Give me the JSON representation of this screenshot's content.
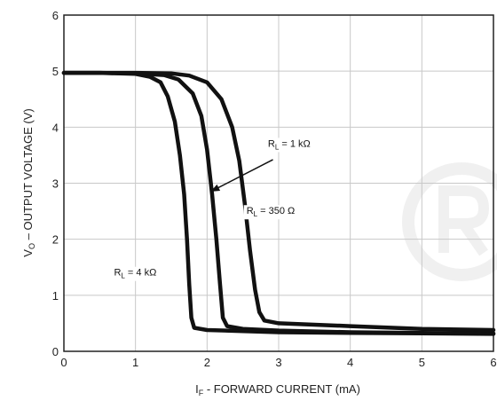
{
  "chart_data": {
    "type": "line",
    "xlabel": {
      "main": "I",
      "sub": "F",
      "rest": " - FORWARD CURRENT (mA)"
    },
    "ylabel": {
      "main": "V",
      "sub": "O",
      "rest": " – OUTPUT VOLTAGE (V)"
    },
    "xlim": [
      0,
      6
    ],
    "ylim": [
      0,
      6
    ],
    "xticks": [
      0,
      1,
      2,
      3,
      4,
      5,
      6
    ],
    "yticks": [
      0,
      1,
      2,
      3,
      4,
      5,
      6
    ],
    "grid": true,
    "series": [
      {
        "name": "RL = 4 kΩ",
        "points": [
          [
            0,
            4.97
          ],
          [
            0.5,
            4.97
          ],
          [
            1.0,
            4.95
          ],
          [
            1.2,
            4.9
          ],
          [
            1.35,
            4.8
          ],
          [
            1.45,
            4.55
          ],
          [
            1.55,
            4.1
          ],
          [
            1.62,
            3.5
          ],
          [
            1.68,
            2.8
          ],
          [
            1.72,
            2.0
          ],
          [
            1.75,
            1.2
          ],
          [
            1.78,
            0.6
          ],
          [
            1.82,
            0.42
          ],
          [
            2.0,
            0.38
          ],
          [
            3.0,
            0.34
          ],
          [
            4.0,
            0.33
          ],
          [
            5.0,
            0.32
          ],
          [
            6.0,
            0.31
          ]
        ]
      },
      {
        "name": "RL = 350 Ω",
        "points": [
          [
            0,
            4.97
          ],
          [
            0.5,
            4.97
          ],
          [
            1.0,
            4.96
          ],
          [
            1.4,
            4.93
          ],
          [
            1.6,
            4.85
          ],
          [
            1.8,
            4.6
          ],
          [
            1.92,
            4.2
          ],
          [
            2.0,
            3.6
          ],
          [
            2.07,
            2.8
          ],
          [
            2.13,
            2.0
          ],
          [
            2.18,
            1.2
          ],
          [
            2.22,
            0.6
          ],
          [
            2.28,
            0.45
          ],
          [
            2.5,
            0.4
          ],
          [
            3.0,
            0.37
          ],
          [
            4.0,
            0.34
          ],
          [
            5.0,
            0.33
          ],
          [
            6.0,
            0.32
          ]
        ]
      },
      {
        "name": "RL = 1 kΩ",
        "points": [
          [
            0,
            4.97
          ],
          [
            0.5,
            4.97
          ],
          [
            1.0,
            4.97
          ],
          [
            1.5,
            4.96
          ],
          [
            1.75,
            4.92
          ],
          [
            2.0,
            4.8
          ],
          [
            2.2,
            4.5
          ],
          [
            2.35,
            4.0
          ],
          [
            2.45,
            3.4
          ],
          [
            2.53,
            2.6
          ],
          [
            2.6,
            1.8
          ],
          [
            2.67,
            1.1
          ],
          [
            2.73,
            0.7
          ],
          [
            2.8,
            0.55
          ],
          [
            3.0,
            0.5
          ],
          [
            4.0,
            0.45
          ],
          [
            5.0,
            0.4
          ],
          [
            6.0,
            0.38
          ]
        ]
      }
    ],
    "annotations": [
      {
        "id": "ann-1k",
        "main": "R",
        "sub": "L",
        "rest": " = 1 kΩ",
        "x": 2.85,
        "y": 3.65
      },
      {
        "id": "ann-350",
        "main": "R",
        "sub": "L",
        "rest": " = 350 Ω",
        "x": 2.55,
        "y": 2.45
      },
      {
        "id": "ann-4k",
        "main": "R",
        "sub": "L",
        "rest": " = 4 kΩ",
        "x": 0.7,
        "y": 1.35
      }
    ],
    "arrow": {
      "from": [
        2.92,
        3.42
      ],
      "to": [
        2.05,
        2.85
      ]
    }
  }
}
